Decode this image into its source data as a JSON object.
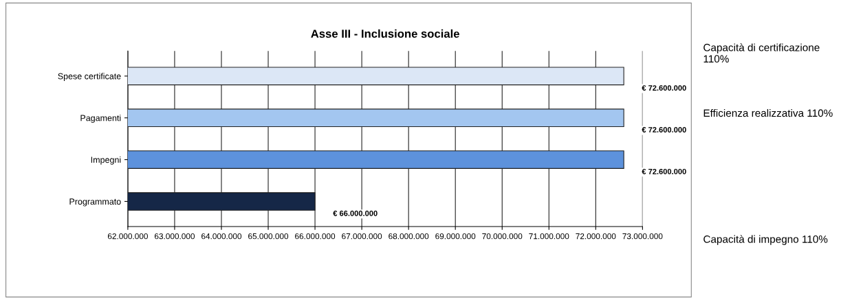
{
  "chart_data": {
    "type": "bar",
    "orientation": "horizontal",
    "title": "Asse III - Inclusione sociale",
    "categories": [
      "Spese certificate",
      "Pagamenti",
      "Impegni",
      "Programmato"
    ],
    "values": [
      72600000,
      72600000,
      72600000,
      66000000
    ],
    "colors": [
      "#dce7f6",
      "#a3c6f0",
      "#5d92dc",
      "#152747"
    ],
    "value_labels": [
      "€ 72.600.000",
      "€ 72.600.000",
      "€ 72.600.000",
      "€ 66.000.000"
    ],
    "xlim": [
      62000000,
      73000000
    ],
    "xticks": [
      {
        "value": 62000000,
        "label": "62.000.000"
      },
      {
        "value": 63000000,
        "label": "63.000.000"
      },
      {
        "value": 64000000,
        "label": "64.000.000"
      },
      {
        "value": 65000000,
        "label": "65.000.000"
      },
      {
        "value": 66000000,
        "label": "66.000.000"
      },
      {
        "value": 67000000,
        "label": "67.000.000"
      },
      {
        "value": 68000000,
        "label": "68.000.000"
      },
      {
        "value": 69000000,
        "label": "69.000.000"
      },
      {
        "value": 70000000,
        "label": "70.000.000"
      },
      {
        "value": 71000000,
        "label": "71.000.000"
      },
      {
        "value": 72000000,
        "label": "72.000.000"
      },
      {
        "value": 73000000,
        "label": "73.000.000"
      }
    ],
    "grid": "x",
    "annotations": [
      "Capacità di certificazione 110%",
      "Efficienza realizzativa 110%",
      "Capacità di impegno 110%"
    ]
  }
}
